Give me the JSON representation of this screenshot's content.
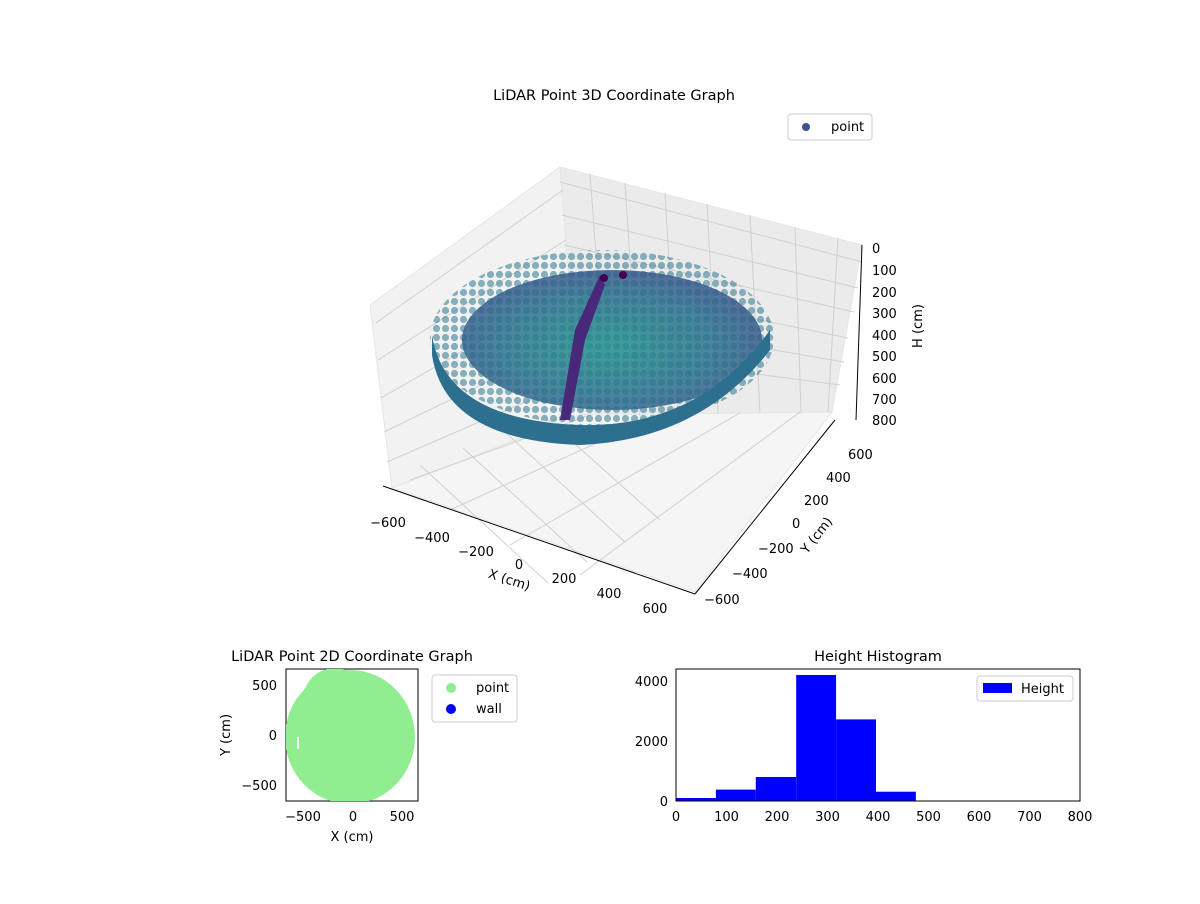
{
  "chart_data": [
    {
      "type": "scatter",
      "projection": "3d",
      "title": "LiDAR Point 3D Coordinate Graph",
      "xlabel": "X (cm)",
      "ylabel": "Y (cm)",
      "zlabel": "H (cm)",
      "xticks": [
        "−600",
        "−400",
        "−200",
        "0",
        "200",
        "400",
        "600"
      ],
      "yticks": [
        "−600",
        "−400",
        "−200",
        "0",
        "200",
        "400",
        "600"
      ],
      "zticks": [
        "0",
        "100",
        "200",
        "300",
        "400",
        "500",
        "600",
        "700",
        "800"
      ],
      "xlim": [
        -650,
        650
      ],
      "ylim": [
        -650,
        650
      ],
      "zlim": [
        800,
        0
      ],
      "legend": [
        {
          "label": "point",
          "color": "#3b528b"
        }
      ],
      "colormap": "viridis",
      "grid": true
    },
    {
      "type": "scatter",
      "title": "LiDAR Point 2D Coordinate Graph",
      "xlabel": "X (cm)",
      "ylabel": "Y (cm)",
      "xticks": [
        "−500",
        "0",
        "500"
      ],
      "yticks": [
        "500",
        "0",
        "−500"
      ],
      "xlim": [
        -670,
        670
      ],
      "ylim": [
        -680,
        670
      ],
      "legend": [
        {
          "label": "point",
          "color": "#90ee90"
        },
        {
          "label": "wall",
          "color": "#0000ff"
        }
      ],
      "series": [
        {
          "name": "point",
          "shape": "approx disk radius ~650 cm centered near (-20, -10)"
        },
        {
          "name": "wall",
          "points": []
        }
      ]
    },
    {
      "type": "bar",
      "title": "Height Histogram",
      "xlabel": "",
      "ylabel": "",
      "bins": [
        [
          0,
          79
        ],
        [
          79,
          158
        ],
        [
          158,
          238
        ],
        [
          238,
          317
        ],
        [
          317,
          396
        ],
        [
          396,
          475
        ]
      ],
      "values": [
        100,
        380,
        800,
        4200,
        2720,
        310
      ],
      "xticks": [
        "0",
        "100",
        "200",
        "300",
        "400",
        "500",
        "600",
        "700",
        "800"
      ],
      "yticks": [
        "0",
        "2000",
        "4000"
      ],
      "xlim": [
        0,
        800
      ],
      "ylim": [
        0,
        4400
      ],
      "legend": [
        {
          "label": "Height",
          "color": "#0000ff"
        }
      ],
      "legend_position": "upper right"
    }
  ]
}
